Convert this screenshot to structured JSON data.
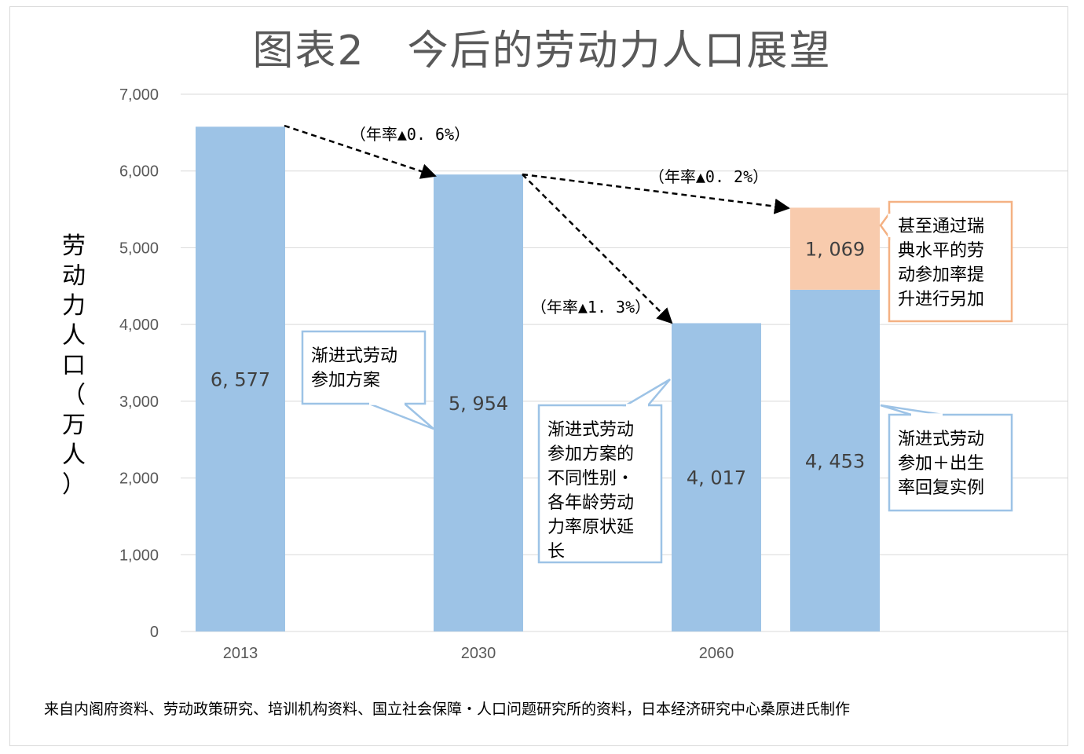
{
  "title": "图表2　今后的劳动力人口展望",
  "ylabel": "劳动力人口（万人）",
  "source": "来自内阁府资料、劳动政策研究、培训机构资料、国立社会保障・人口问题研究所的资料，日本经济研究中心桑原进氏制作",
  "colors": {
    "bar": "#9dc3e6",
    "extra": "#f8cbad",
    "extra_border": "#f4b183",
    "callout_border": "#9dc3e6",
    "grid": "#d9d9d9"
  },
  "chart_data": {
    "type": "bar",
    "y_ticks": [
      "0",
      "1,000",
      "2,000",
      "3,000",
      "4,000",
      "5,000",
      "6,000",
      "7,000"
    ],
    "ylim": [
      0,
      7000
    ],
    "grid": true,
    "categories": [
      "2013",
      "2030",
      "2060",
      ""
    ],
    "series": [
      {
        "values": [
          6577,
          5954,
          4017,
          4453
        ],
        "labels": [
          "6, 577",
          "5, 954",
          "4, 017",
          "4, 453"
        ]
      },
      {
        "values": [
          0,
          0,
          0,
          1069
        ],
        "labels": [
          "",
          "",
          "",
          "1, 069"
        ]
      }
    ],
    "annotations": [
      {
        "text": "（年率▲0. 6%）"
      },
      {
        "text": "（年率▲0. 2%）"
      },
      {
        "text": "（年率▲1. 3%）"
      }
    ],
    "callouts": [
      {
        "lines": [
          "渐进式劳动",
          "参加方案"
        ]
      },
      {
        "lines": [
          "渐进式劳动",
          "参加方案的",
          "不同性别・",
          "各年龄劳动",
          "力率原状延",
          "长"
        ]
      },
      {
        "lines": [
          "甚至通过瑞",
          "典水平的劳",
          "动参加率提",
          "升进行另加"
        ]
      },
      {
        "lines": [
          "渐进式劳动",
          "参加＋出生",
          "率回复实例"
        ]
      }
    ]
  }
}
